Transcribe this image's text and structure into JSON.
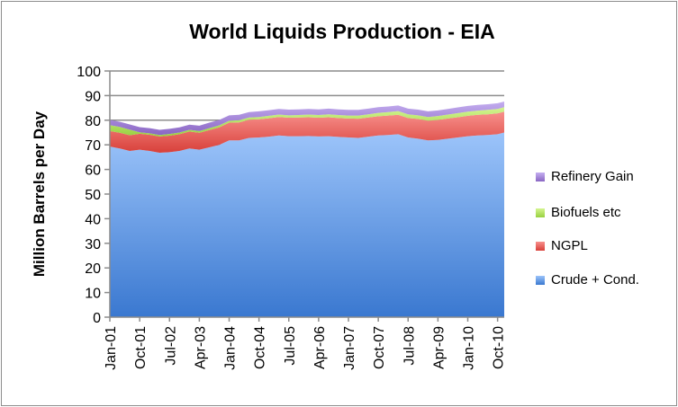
{
  "chart_data": {
    "type": "area",
    "stacked": true,
    "title": "World Liquids Production - EIA",
    "xlabel": "",
    "ylabel": "Million Barrels per Day",
    "ylim": [
      0,
      100
    ],
    "yticks": [
      0,
      10,
      20,
      30,
      40,
      50,
      60,
      70,
      80,
      90,
      100
    ],
    "grid": "horizontal major",
    "legend": "right",
    "xtick_labels": [
      "Jan-01",
      "Oct-01",
      "Jul-02",
      "Apr-03",
      "Jan-04",
      "Oct-04",
      "Jul-05",
      "Apr-06",
      "Jan-07",
      "Oct-07",
      "Jul-08",
      "Apr-09",
      "Jan-10",
      "Oct-10"
    ],
    "x": [
      "Jan-01",
      "Apr-01",
      "Jul-01",
      "Oct-01",
      "Jan-02",
      "Apr-02",
      "Jul-02",
      "Oct-02",
      "Jan-03",
      "Apr-03",
      "Jul-03",
      "Oct-03",
      "Jan-04",
      "Apr-04",
      "Jul-04",
      "Oct-04",
      "Jan-05",
      "Apr-05",
      "Jul-05",
      "Oct-05",
      "Jan-06",
      "Apr-06",
      "Jul-06",
      "Oct-06",
      "Jan-07",
      "Apr-07",
      "Jul-07",
      "Oct-07",
      "Jan-08",
      "Apr-08",
      "Jul-08",
      "Oct-08",
      "Jan-09",
      "Apr-09",
      "Jul-09",
      "Oct-09",
      "Jan-10",
      "Apr-10",
      "Jul-10",
      "Oct-10",
      "Dec-10"
    ],
    "series": [
      {
        "name": "Crude + Cond.",
        "color": "#6a9ee8",
        "values": [
          69.3,
          68.5,
          67.5,
          68.0,
          67.5,
          66.8,
          67.0,
          67.5,
          68.5,
          68.0,
          69.0,
          70.0,
          71.8,
          71.8,
          72.8,
          73.0,
          73.3,
          73.8,
          73.5,
          73.5,
          73.6,
          73.4,
          73.5,
          73.2,
          73.0,
          72.8,
          73.3,
          73.8,
          74.0,
          74.3,
          73.0,
          72.5,
          71.8,
          72.0,
          72.5,
          73.0,
          73.5,
          73.8,
          74.0,
          74.3,
          75.0
        ]
      },
      {
        "name": "NGPL",
        "color": "#e8706c",
        "values": [
          6.3,
          6.4,
          6.4,
          6.5,
          6.6,
          6.6,
          6.7,
          6.8,
          6.9,
          6.9,
          7.0,
          7.1,
          7.2,
          7.3,
          7.4,
          7.4,
          7.5,
          7.5,
          7.5,
          7.6,
          7.6,
          7.6,
          7.7,
          7.7,
          7.7,
          7.8,
          7.8,
          7.8,
          7.9,
          7.9,
          7.9,
          8.0,
          8.0,
          8.1,
          8.2,
          8.2,
          8.3,
          8.4,
          8.4,
          8.5,
          8.5
        ]
      },
      {
        "name": "Biofuels etc",
        "color": "#b5e36a",
        "values": [
          2.4,
          2.4,
          2.3,
          0.6,
          0.6,
          0.6,
          0.7,
          0.7,
          0.7,
          0.7,
          0.8,
          0.8,
          0.8,
          0.9,
          0.9,
          0.9,
          1.0,
          1.0,
          1.0,
          1.0,
          1.1,
          1.1,
          1.2,
          1.2,
          1.2,
          1.3,
          1.3,
          1.4,
          1.4,
          1.5,
          1.5,
          1.5,
          1.5,
          1.6,
          1.6,
          1.7,
          1.7,
          1.7,
          1.8,
          1.8,
          1.8
        ]
      },
      {
        "name": "Refinery Gain",
        "color": "#a98bd6",
        "values": [
          2.1,
          2.1,
          2.1,
          2.1,
          2.1,
          2.1,
          2.1,
          2.1,
          2.1,
          2.2,
          2.2,
          2.2,
          2.2,
          2.2,
          2.2,
          2.3,
          2.3,
          2.3,
          2.3,
          2.3,
          2.3,
          2.3,
          2.3,
          2.3,
          2.3,
          2.3,
          2.3,
          2.3,
          2.3,
          2.3,
          2.3,
          2.3,
          2.3,
          2.3,
          2.3,
          2.3,
          2.3,
          2.3,
          2.3,
          2.3,
          2.3
        ]
      }
    ]
  }
}
